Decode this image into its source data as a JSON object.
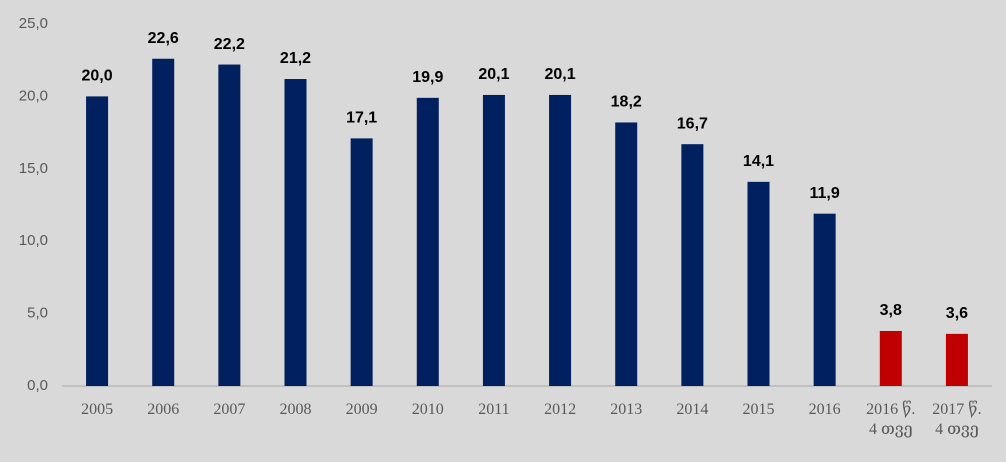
{
  "chart_data": {
    "type": "bar",
    "categories": [
      "2005",
      "2006",
      "2007",
      "2008",
      "2009",
      "2010",
      "2011",
      "2012",
      "2013",
      "2014",
      "2015",
      "2016",
      "2016 წ. 4 თვე",
      "2017 წ. 4 თვე"
    ],
    "values": [
      20.0,
      22.6,
      22.2,
      21.2,
      17.1,
      19.9,
      20.1,
      20.1,
      18.2,
      16.7,
      14.1,
      11.9,
      3.8,
      3.6
    ],
    "value_labels": [
      "20,0",
      "22,6",
      "22,2",
      "21,2",
      "17,1",
      "19,9",
      "20,1",
      "20,1",
      "18,2",
      "16,7",
      "14,1",
      "11,9",
      "3,8",
      "3,6"
    ],
    "colors": [
      "#002060",
      "#002060",
      "#002060",
      "#002060",
      "#002060",
      "#002060",
      "#002060",
      "#002060",
      "#002060",
      "#002060",
      "#002060",
      "#002060",
      "#c00000",
      "#c00000"
    ],
    "ylim": [
      0,
      25
    ],
    "yticks": [
      {
        "value": 0,
        "label": "0,0"
      },
      {
        "value": 5,
        "label": "5,0"
      },
      {
        "value": 10,
        "label": "10,0"
      },
      {
        "value": 15,
        "label": "15,0"
      },
      {
        "value": 20,
        "label": "20,0"
      },
      {
        "value": 25,
        "label": "25,0"
      }
    ],
    "grid": false
  }
}
